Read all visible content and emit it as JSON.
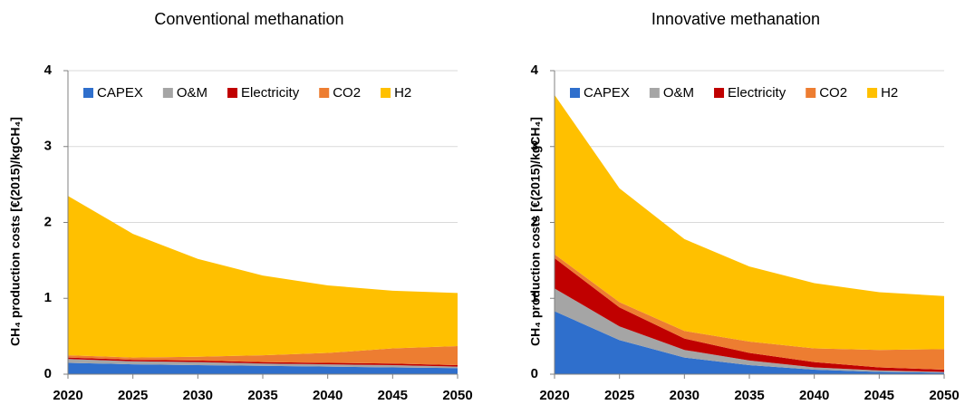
{
  "chart_data": [
    {
      "type": "area",
      "title": "Conventional methanation",
      "ylabel": "CH₄ production costs [€(2015)/kgCH₄]",
      "x": [
        2020,
        2025,
        2030,
        2035,
        2040,
        2045,
        2050
      ],
      "xlim": [
        2020,
        2050
      ],
      "xticks": [
        2020,
        2025,
        2030,
        2035,
        2040,
        2045,
        2050
      ],
      "ylim": [
        0,
        4
      ],
      "yticks": [
        0,
        1,
        2,
        3,
        4
      ],
      "grid": true,
      "legend": "top",
      "series": [
        {
          "name": "CAPEX",
          "color": "#2f6fcc",
          "values": [
            0.15,
            0.13,
            0.12,
            0.11,
            0.1,
            0.09,
            0.08
          ]
        },
        {
          "name": "O&M",
          "color": "#a5a5a5",
          "values": [
            0.05,
            0.04,
            0.04,
            0.03,
            0.03,
            0.03,
            0.02
          ]
        },
        {
          "name": "Electricity",
          "color": "#c00000",
          "values": [
            0.02,
            0.02,
            0.02,
            0.02,
            0.02,
            0.02,
            0.02
          ]
        },
        {
          "name": "CO2",
          "color": "#ed7d31",
          "values": [
            0.03,
            0.03,
            0.05,
            0.09,
            0.13,
            0.2,
            0.25
          ]
        },
        {
          "name": "H2",
          "color": "#ffc000",
          "values": [
            2.1,
            1.63,
            1.29,
            1.05,
            0.89,
            0.76,
            0.7
          ]
        }
      ]
    },
    {
      "type": "area",
      "title": "Innovative methanation",
      "ylabel": "CH₄ production costs [€(2015)/kgCH₄]",
      "x": [
        2020,
        2025,
        2030,
        2035,
        2040,
        2045,
        2050
      ],
      "xlim": [
        2020,
        2050
      ],
      "xticks": [
        2020,
        2025,
        2030,
        2035,
        2040,
        2045,
        2050
      ],
      "ylim": [
        0,
        4
      ],
      "yticks": [
        0,
        1,
        2,
        3,
        4
      ],
      "grid": true,
      "legend": "top",
      "series": [
        {
          "name": "CAPEX",
          "color": "#2f6fcc",
          "values": [
            0.83,
            0.45,
            0.22,
            0.12,
            0.06,
            0.03,
            0.02
          ]
        },
        {
          "name": "O&M",
          "color": "#a5a5a5",
          "values": [
            0.3,
            0.18,
            0.1,
            0.06,
            0.03,
            0.02,
            0.01
          ]
        },
        {
          "name": "Electricity",
          "color": "#c00000",
          "values": [
            0.4,
            0.25,
            0.15,
            0.1,
            0.07,
            0.04,
            0.03
          ]
        },
        {
          "name": "CO2",
          "color": "#ed7d31",
          "values": [
            0.05,
            0.07,
            0.1,
            0.15,
            0.18,
            0.23,
            0.27
          ]
        },
        {
          "name": "H2",
          "color": "#ffc000",
          "values": [
            2.1,
            1.5,
            1.21,
            0.99,
            0.86,
            0.76,
            0.7
          ]
        }
      ]
    }
  ]
}
